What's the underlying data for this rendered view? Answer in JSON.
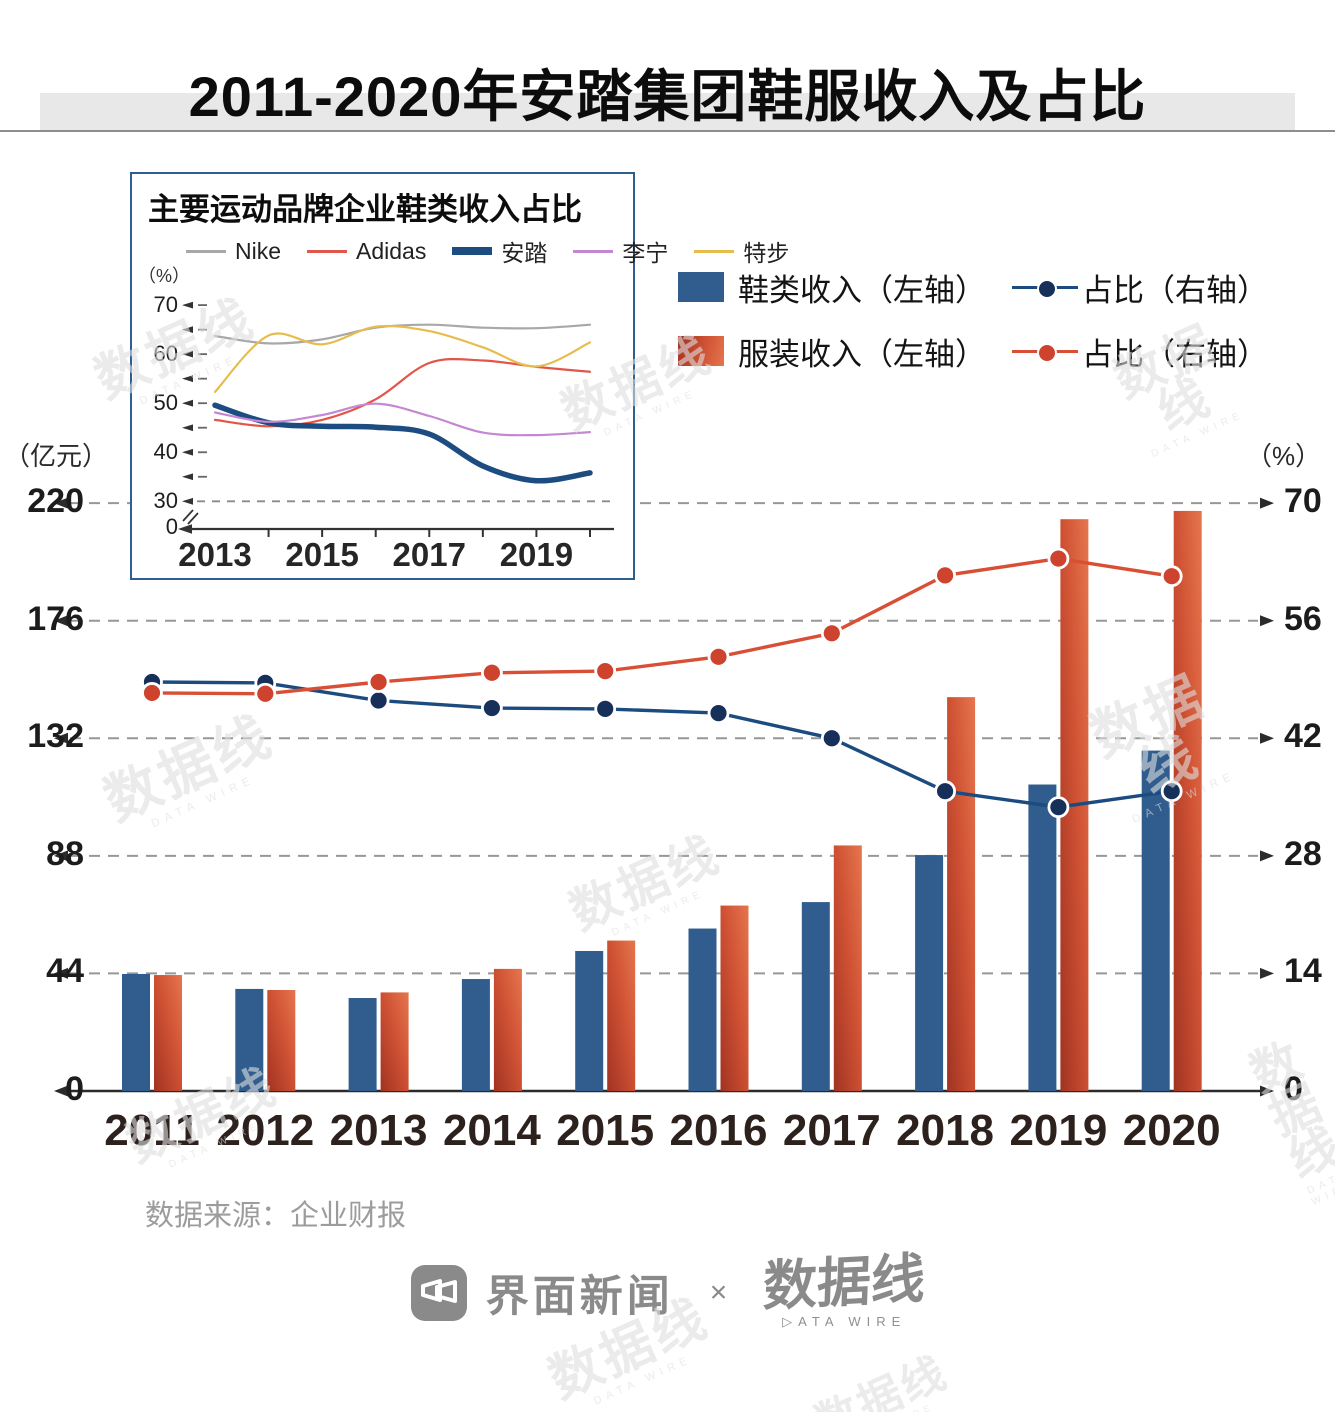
{
  "title": "2011-2020年安踏集团鞋服收入及占比",
  "inset": {
    "title": "主要运动品牌企业鞋类收入占比",
    "unit_label": "（%）",
    "zero_label": "0",
    "y_tick_labels": [
      "70",
      "60",
      "50",
      "40",
      "30"
    ],
    "x_tick_labels": [
      "2013",
      "2015",
      "2017",
      "2019"
    ],
    "legend": [
      {
        "label": "Nike",
        "color": "#a8a8a8",
        "thick": false
      },
      {
        "label": "Adidas",
        "color": "#e25549",
        "thick": false
      },
      {
        "label": "安踏",
        "color": "#1d4c80",
        "thick": true
      },
      {
        "label": "李宁",
        "color": "#c488d2",
        "thick": false
      },
      {
        "label": "特步",
        "color": "#e6bd4d",
        "thick": false
      }
    ]
  },
  "legend": {
    "rows": [
      {
        "bar_label": "鞋类收入（左轴）",
        "line_label": "占比（右轴）",
        "bar_color": "#305d8d",
        "bar_color2": "",
        "line_color": "#1c4b80",
        "dot_color": "#16305a"
      },
      {
        "bar_label": "服装收入（左轴）",
        "line_label": "占比（右轴）",
        "bar_color": "#a03322",
        "bar_color2": "#e5764e",
        "line_color": "#d94f35",
        "dot_color": "#ce432e"
      }
    ]
  },
  "main": {
    "left_axis_label": "（亿元）",
    "right_axis_label": "（%）",
    "left_ticks": [
      "220",
      "176",
      "132",
      "88",
      "44",
      "0"
    ],
    "right_ticks": [
      "70",
      "56",
      "42",
      "28",
      "14",
      "0"
    ]
  },
  "source": "数据来源：企业财报",
  "footer": {
    "jiemian": "界面新闻",
    "times": "×",
    "datawire": "数据线",
    "datawire_sub": "▷ATA WIRE"
  },
  "watermark": {
    "text": "数据线",
    "sub": "DATA WIRE"
  },
  "chart_data": [
    {
      "id": "brand-footwear-share-lines",
      "type": "line",
      "title": "主要运动品牌企业鞋类收入占比",
      "xlabel": "",
      "ylabel": "%",
      "x": [
        2013,
        2014,
        2015,
        2016,
        2017,
        2018,
        2019,
        2020
      ],
      "x_labeled_ticks": [
        2013,
        2015,
        2017,
        2019
      ],
      "ylim": [
        30,
        70
      ],
      "axis_break_to_zero": true,
      "y_ticks": [
        70,
        60,
        50,
        40,
        30
      ],
      "y_minor_ticks": [
        65,
        55,
        45,
        35
      ],
      "grid": "dashed line at 30 only",
      "legend_position": "top",
      "series": [
        {
          "name": "Nike",
          "color": "#a8a8a8",
          "width": 2.2,
          "values": [
            63.7,
            62.2,
            63.0,
            65.4,
            66.0,
            65.4,
            65.3,
            66.0
          ]
        },
        {
          "name": "Adidas",
          "color": "#e25549",
          "width": 2.2,
          "values": [
            46.6,
            45.3,
            46.6,
            50.8,
            58.2,
            58.7,
            57.4,
            56.4
          ]
        },
        {
          "name": "安踏",
          "color": "#1d4c80",
          "width": 5.5,
          "values": [
            49.6,
            46.0,
            45.3,
            45.1,
            43.7,
            37.2,
            34.2,
            35.8
          ]
        },
        {
          "name": "李宁",
          "color": "#c488d2",
          "width": 2.2,
          "values": [
            48.1,
            46.2,
            47.6,
            49.9,
            47.4,
            44.0,
            43.5,
            44.1
          ]
        },
        {
          "name": "特步",
          "color": "#e6bd4d",
          "width": 2.2,
          "values": [
            52.3,
            63.8,
            62.0,
            65.6,
            64.7,
            61.4,
            57.5,
            62.4
          ]
        }
      ]
    },
    {
      "id": "anta-revenue-combo",
      "type": "bar",
      "title": "2011-2020年安踏集团鞋服收入及占比",
      "categories": [
        "2011",
        "2012",
        "2013",
        "2014",
        "2015",
        "2016",
        "2017",
        "2018",
        "2019",
        "2020"
      ],
      "left_axis": {
        "label": "亿元",
        "ticks": [
          220,
          176,
          132,
          88,
          44,
          0
        ],
        "max": 220
      },
      "right_axis": {
        "label": "%",
        "ticks": [
          70,
          56,
          42,
          28,
          14,
          0
        ],
        "max": 70
      },
      "grid": "horizontal dashed",
      "bar_series": [
        {
          "name": "鞋类收入（左轴）",
          "axis": "left",
          "color": "#305d8d",
          "values": [
            43.8,
            38.2,
            34.8,
            41.9,
            52.4,
            60.8,
            70.7,
            88.3,
            114.7,
            127.4
          ]
        },
        {
          "name": "服装收入（左轴）",
          "axis": "left",
          "color": "#cc4a2e",
          "values": [
            43.4,
            37.8,
            36.9,
            45.7,
            56.3,
            69.4,
            91.9,
            147.4,
            214.0,
            217.1
          ]
        }
      ],
      "line_series": [
        {
          "name": "鞋类占比（右轴）",
          "axis": "right",
          "color": "#1c4b80",
          "dot": "#16305a",
          "values": [
            48.7,
            48.6,
            46.5,
            45.6,
            45.5,
            45.0,
            42.0,
            35.7,
            33.8,
            35.7
          ]
        },
        {
          "name": "服装占比（右轴）",
          "axis": "right",
          "color": "#d94f35",
          "dot": "#ce432e",
          "values": [
            47.4,
            47.3,
            48.7,
            49.8,
            50.0,
            51.7,
            54.5,
            61.4,
            63.4,
            61.3
          ]
        }
      ],
      "source": "数据来源：企业财报"
    }
  ]
}
